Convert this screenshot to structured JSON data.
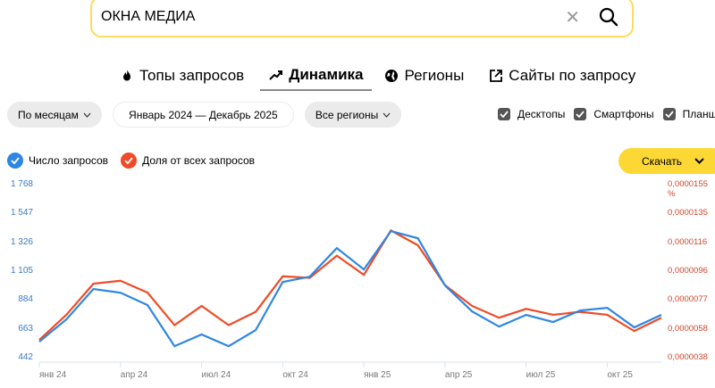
{
  "search": {
    "value": "ОКНА МЕДИА",
    "clear_icon": "close-icon",
    "search_icon": "search-icon"
  },
  "tabs": [
    {
      "label": "Топы запросов",
      "icon": "fire-icon",
      "active": false
    },
    {
      "label": "Динамика",
      "icon": "trend-icon",
      "active": true
    },
    {
      "label": "Регионы",
      "icon": "globe-icon",
      "active": false
    },
    {
      "label": "Сайты по запросу",
      "icon": "external-link-icon",
      "active": false
    }
  ],
  "filters": {
    "period_group": "По месяцам",
    "date_range": "Январь 2024 — Декабрь 2025",
    "region": "Все регионы"
  },
  "devices": [
    {
      "label": "Десктопы",
      "checked": true
    },
    {
      "label": "Смартфоны",
      "checked": true
    },
    {
      "label": "Планшеты",
      "checked": true
    }
  ],
  "legend": [
    {
      "label": "Число запросов",
      "color": "#2f86e0"
    },
    {
      "label": "Доля от всех запросов",
      "color": "#ef4b26"
    }
  ],
  "download_label": "Скачать",
  "chart_data": {
    "type": "line",
    "title": "",
    "x": [
      "янв 24",
      "фев 24",
      "мар 24",
      "апр 24",
      "май 24",
      "июн 24",
      "июл 24",
      "авг 24",
      "сен 24",
      "окт 24",
      "ноя 24",
      "дек 24",
      "янв 25",
      "фев 25",
      "мар 25",
      "апр 25",
      "май 25",
      "июн 25",
      "июл 25",
      "авг 25",
      "сен 25",
      "окт 25",
      "ноя 25",
      "дек 25"
    ],
    "x_tick_labels": [
      "янв 24",
      "апр 24",
      "июл 24",
      "окт 24",
      "янв 25",
      "апр 25",
      "июл 25",
      "окт 25"
    ],
    "y_left_ticks": [
      "442",
      "663",
      "884",
      "1 105",
      "1 326",
      "1 547",
      "1 768"
    ],
    "y_right_ticks": [
      "0,0000038",
      "0,0000058",
      "0,0000077",
      "0,0000096",
      "0,0000116",
      "0,0000135",
      "0,0000155 %"
    ],
    "ylim_left": [
      442,
      1768
    ],
    "ylim_right": [
      3.8e-06,
      1.55e-05
    ],
    "grid": false,
    "legend_position": "top-left",
    "series": [
      {
        "name": "Число запросов",
        "axis": "left",
        "color": "#2f86e0",
        "values": [
          565,
          735,
          968,
          940,
          845,
          530,
          620,
          530,
          653,
          1022,
          1063,
          1282,
          1118,
          1412,
          1357,
          995,
          797,
          680,
          770,
          715,
          804,
          824,
          674,
          770
        ]
      },
      {
        "name": "Доля от всех запросов",
        "axis": "right",
        "color": "#ef4b26",
        "values": [
          5e-06,
          6.7e-06,
          8.8e-06,
          9e-06,
          8.2e-06,
          6e-06,
          7.3e-06,
          6e-06,
          6.9e-06,
          9.3e-06,
          9.2e-06,
          1.07e-05,
          9.4e-06,
          1.24e-05,
          1.14e-05,
          8.7e-06,
          7.3e-06,
          6.5e-06,
          7.1e-06,
          6.7e-06,
          6.9e-06,
          6.7e-06,
          5.6e-06,
          6.5e-06
        ]
      }
    ]
  }
}
